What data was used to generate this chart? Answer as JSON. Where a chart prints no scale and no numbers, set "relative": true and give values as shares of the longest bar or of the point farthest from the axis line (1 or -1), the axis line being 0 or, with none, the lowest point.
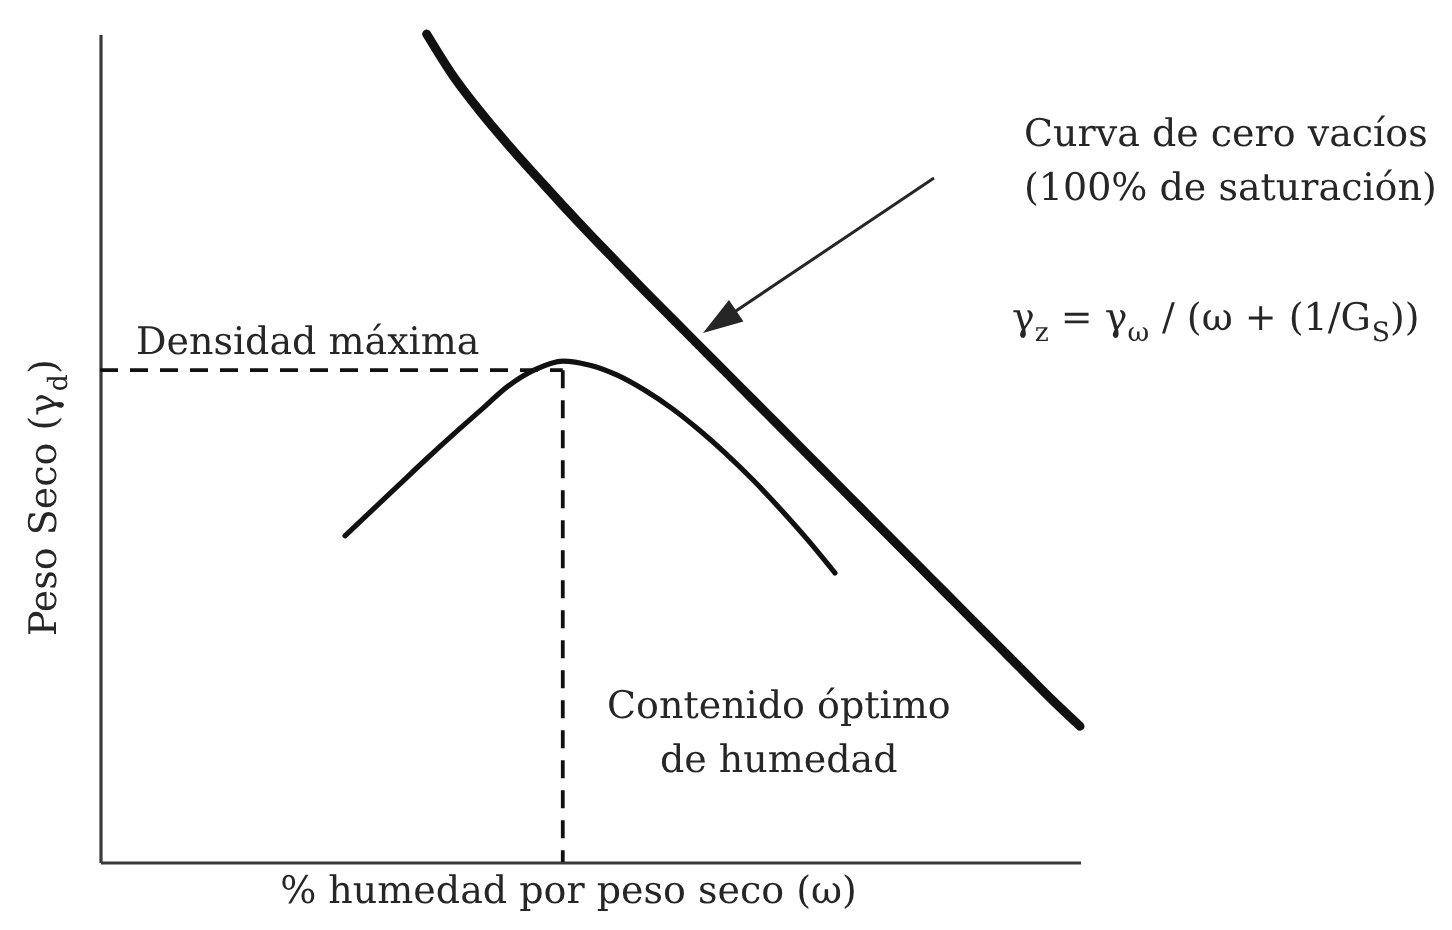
{
  "chart_data": {
    "type": "line",
    "xlabel": "% humedad por peso seco (ω)",
    "ylabel": "Peso Seco (γ$_{d}$)",
    "relative": true,
    "categories": [
      null,
      null,
      null,
      null,
      null,
      null,
      null,
      null,
      null,
      null,
      null,
      null,
      null,
      null,
      null,
      null,
      null,
      null,
      null,
      null,
      null,
      null,
      null,
      null,
      null,
      null,
      null,
      null,
      null,
      null,
      null,
      null,
      null,
      null,
      null,
      null,
      null
    ],
    "series": [
      {
        "color": "#111111",
        "values": [
          null,
          null,
          null,
          null,
          null,
          null,
          null,
          null,
          null,
          null,
          null,
          null,
          1.0,
          0.948,
          0.905,
          0.866,
          0.829,
          0.793,
          0.758,
          0.724,
          0.69,
          0.657,
          0.624,
          0.591,
          0.558,
          0.525,
          0.492,
          0.459,
          0.426,
          0.393,
          0.36,
          0.327,
          0.294,
          0.261,
          0.228,
          0.195,
          0.164
        ]
      },
      {
        "color": "#111111",
        "values": [
          null,
          null,
          null,
          null,
          null,
          null,
          null,
          null,
          null,
          0.394,
          0.425,
          0.456,
          0.487,
          0.517,
          0.546,
          0.575,
          0.595,
          0.605,
          0.6,
          0.588,
          0.57,
          0.548,
          0.522,
          0.493,
          0.461,
          0.426,
          0.389,
          0.349,
          null,
          null,
          null,
          null,
          null,
          null,
          null,
          null,
          null
        ]
      }
    ],
    "ref_lines": [
      {
        "axis": "y",
        "value": 0.594,
        "label": "Densidad máxima",
        "color": "#111111",
        "line_style": "dashed"
      }
    ],
    "annotations": [
      "Curva de cero vacíos (100% de saturación)",
      "γ$_{z}$ = γ$_{ω}$ / (ω + (1/G$_{S}$))",
      "Contenido óptimo de humedad"
    ]
  }
}
